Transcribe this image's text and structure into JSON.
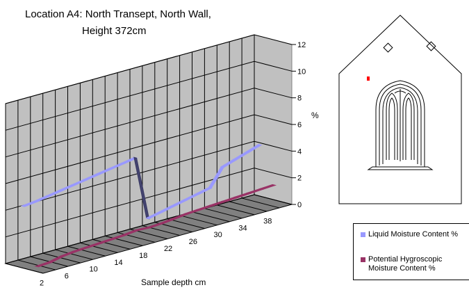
{
  "title_lines": [
    "Location A4: North Transept, North Wall,",
    "Height 372cm"
  ],
  "chart_data": {
    "type": "line",
    "style": "3d",
    "title": "Location A4: North Transept, North Wall, Height 372cm",
    "xlabel": "Sample depth cm",
    "ylabel": "%",
    "ylim": [
      0,
      12
    ],
    "yticks": [
      0,
      2,
      4,
      6,
      8,
      10,
      12
    ],
    "x": [
      2,
      4,
      6,
      8,
      10,
      12,
      14,
      16,
      18,
      20,
      22,
      24,
      26,
      28,
      30,
      32,
      34,
      36,
      38,
      40
    ],
    "x_tick_labels": [
      "2",
      "6",
      "10",
      "14",
      "18",
      "22",
      "26",
      "30",
      "34",
      "38"
    ],
    "grid": true,
    "legend_position": "right",
    "series": [
      {
        "name": "Liquid Moisture Content %",
        "color": "#9999ff",
        "values": [
          4.4,
          4.5,
          4.65,
          4.8,
          4.95,
          5.1,
          5.25,
          5.4,
          5.55,
          5.7,
          0.9,
          1.1,
          1.3,
          1.5,
          1.7,
          1.9,
          3.2,
          3.5,
          3.8,
          4.1
        ]
      },
      {
        "name": "Potential Hygroscopic Moisture Content %",
        "color": "#993366",
        "values": [
          0.15,
          0.2,
          0.4,
          0.5,
          0.55,
          0.6,
          0.65,
          0.7,
          0.8,
          0.75,
          0.8,
          0.9,
          1.0,
          1.05,
          1.1,
          1.15,
          1.2,
          1.25,
          1.3,
          1.35
        ]
      }
    ]
  }
}
